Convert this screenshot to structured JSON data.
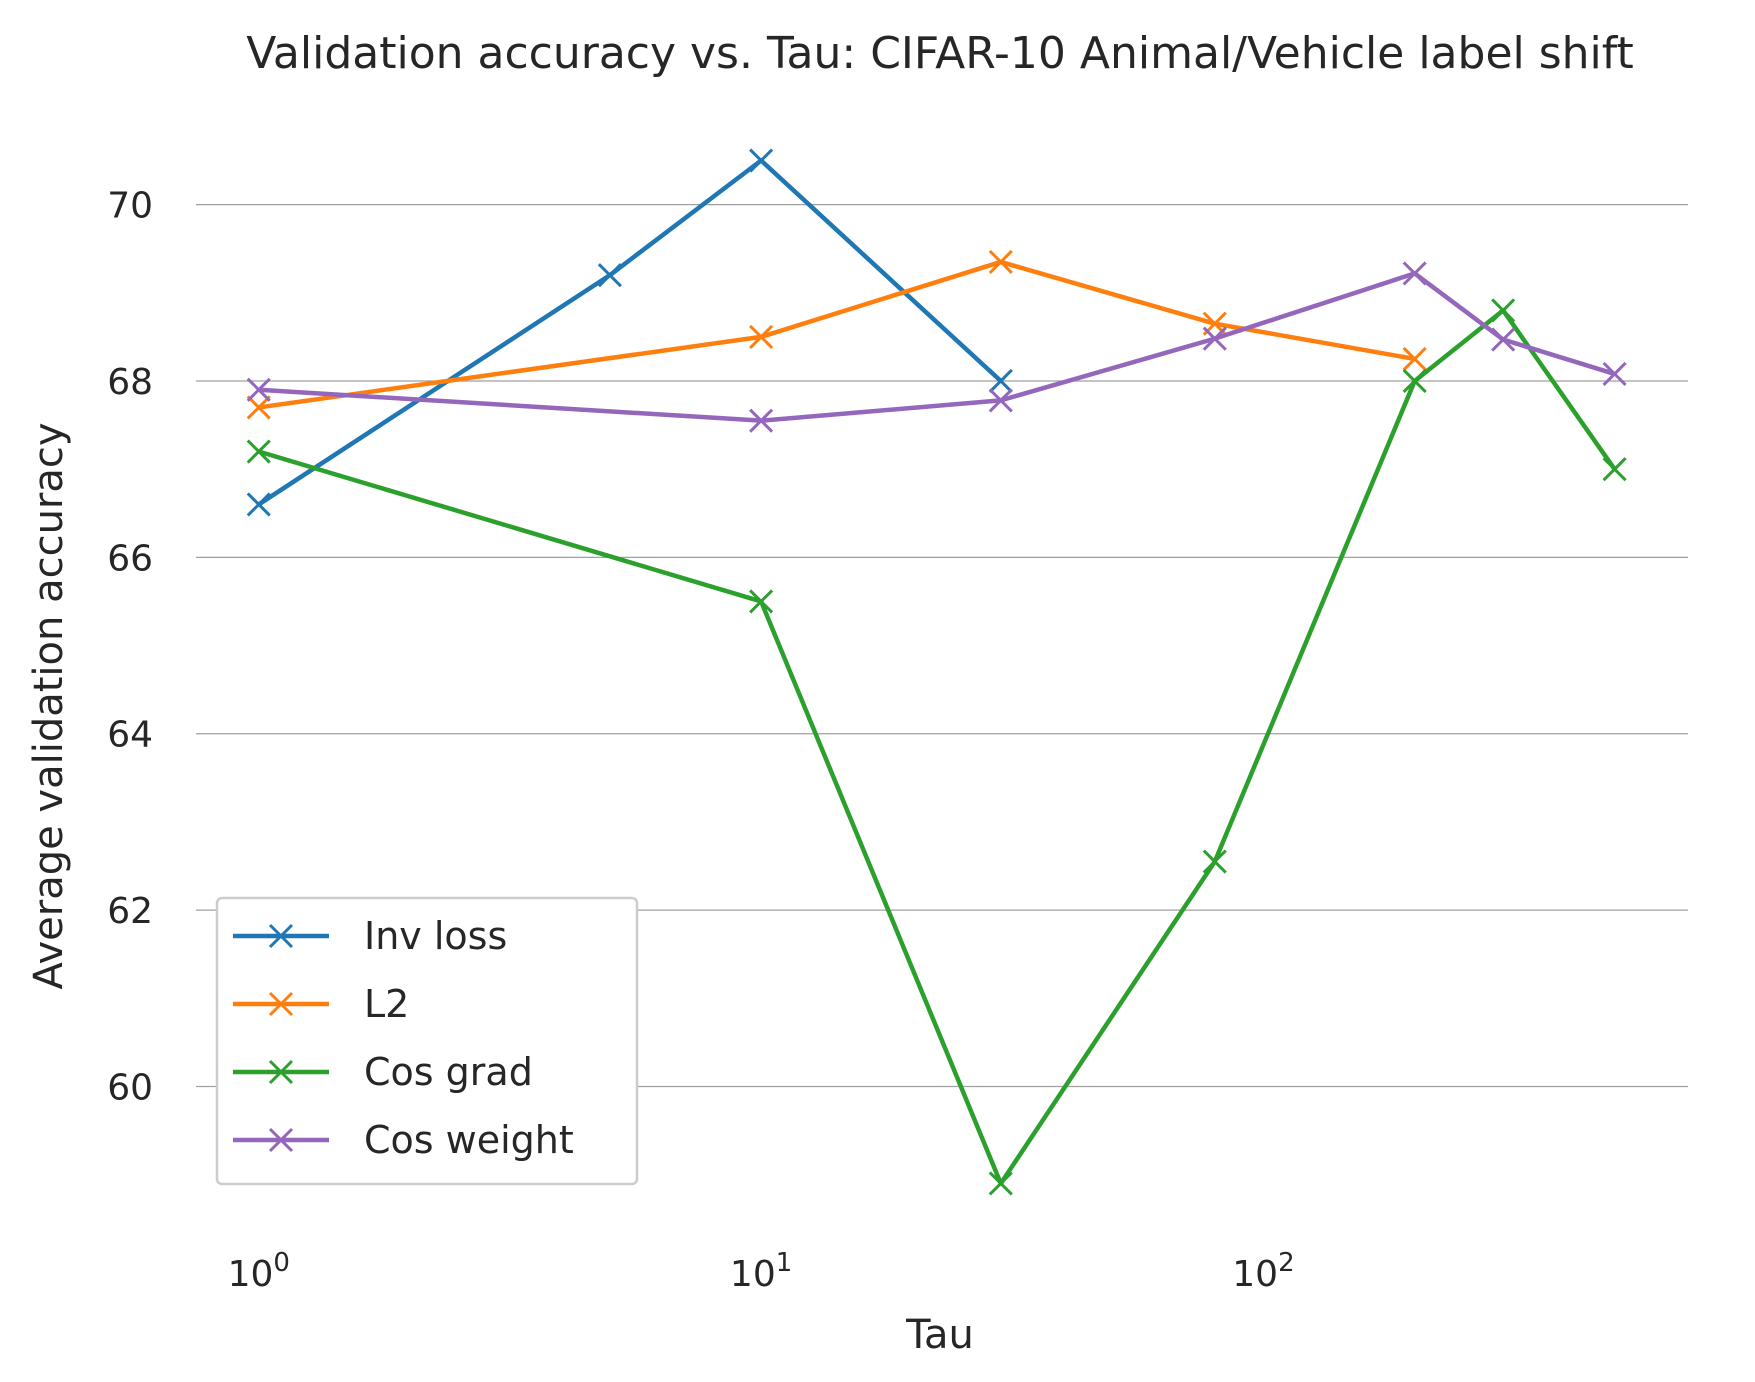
{
  "chart_data": {
    "type": "line",
    "title": "Validation accuracy vs. Tau: CIFAR-10 Animal/Vehicle label shift",
    "xlabel": "Tau",
    "ylabel": "Average validation accuracy",
    "xscale": "log",
    "xlim": [
      0.75,
      700
    ],
    "ylim": [
      58.35,
      71.05
    ],
    "yticks": [
      60,
      62,
      64,
      66,
      68,
      70
    ],
    "ytick_labels": [
      "60",
      "62",
      "64",
      "66",
      "68",
      "70"
    ],
    "xticks": [
      {
        "value": 1,
        "base": "10",
        "exp": "0"
      },
      {
        "value": 10,
        "base": "10",
        "exp": "1"
      },
      {
        "value": 100,
        "base": "10",
        "exp": "2"
      }
    ],
    "grid": "horizontal",
    "legend_position": "lower-left",
    "series": [
      {
        "name": "Inv loss",
        "color": "#1f77b4",
        "x": [
          1,
          5,
          10,
          30
        ],
        "y": [
          66.6,
          69.2,
          70.5,
          68.0
        ]
      },
      {
        "name": "L2",
        "color": "#ff7f0e",
        "x": [
          1,
          10,
          30,
          80,
          200
        ],
        "y": [
          67.7,
          68.5,
          69.35,
          68.65,
          68.25
        ]
      },
      {
        "name": "Cos grad",
        "color": "#2ca02c",
        "x": [
          1,
          10,
          30,
          80,
          200,
          300,
          500
        ],
        "y": [
          67.2,
          65.5,
          58.9,
          62.55,
          68.0,
          68.8,
          67.0
        ]
      },
      {
        "name": "Cos weight",
        "color": "#9467bd",
        "x": [
          1,
          10,
          30,
          80,
          200,
          300,
          500
        ],
        "y": [
          67.9,
          67.55,
          67.78,
          68.48,
          69.22,
          68.47,
          68.08
        ]
      }
    ]
  }
}
